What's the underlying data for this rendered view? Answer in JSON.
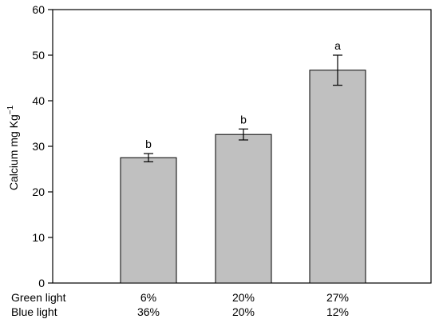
{
  "chart_data": {
    "type": "bar",
    "ylabel": "Calcium mg Kg",
    "ylabel_superscript": "−1",
    "ylim": [
      0,
      60
    ],
    "yticks": [
      "0",
      "10",
      "20",
      "30",
      "40",
      "50",
      "60"
    ],
    "row_labels": [
      "Green light",
      "Blue light"
    ],
    "categories": [
      {
        "green": "6%",
        "blue": "36%"
      },
      {
        "green": "20%",
        "blue": "20%"
      },
      {
        "green": "27%",
        "blue": "12%"
      }
    ],
    "values": [
      27.5,
      32.6,
      46.7
    ],
    "errors": [
      0.9,
      1.2,
      3.3
    ],
    "significance": [
      "b",
      "b",
      "a"
    ],
    "bar_color": "#c0c0c0",
    "grid": false
  }
}
